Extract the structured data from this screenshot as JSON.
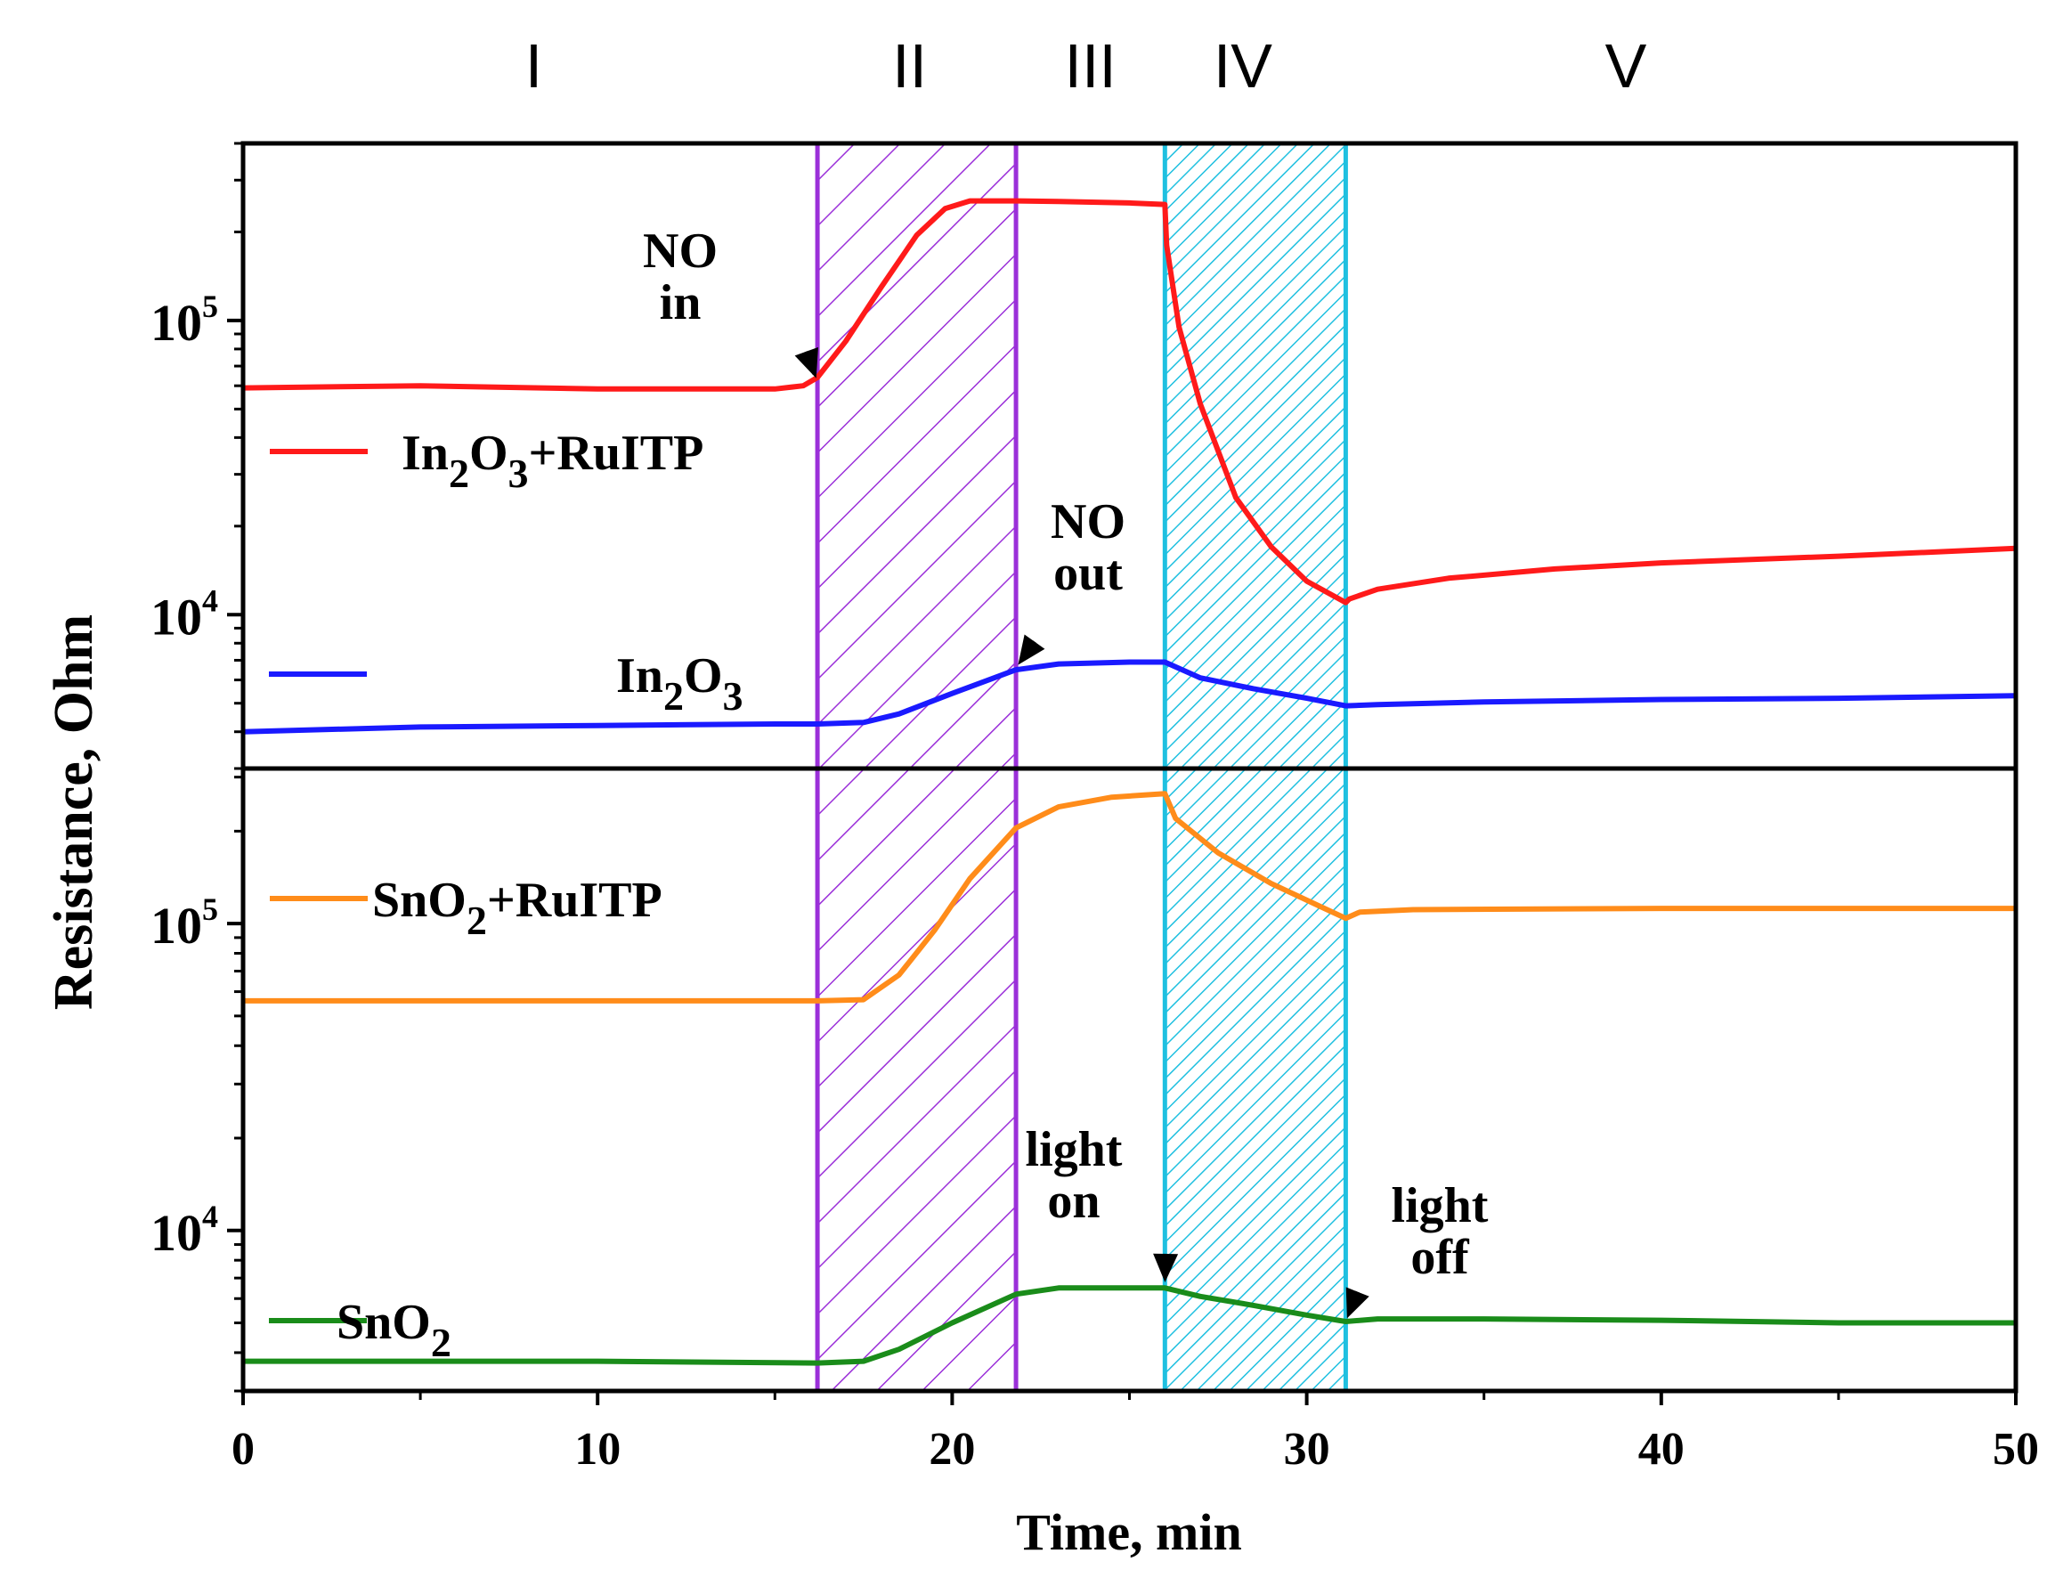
{
  "chart_data": {
    "type": "line",
    "title": "",
    "xlabel": "Time, min",
    "ylabel": "Resistance, Ohm",
    "xlim": [
      0,
      50
    ],
    "x_ticks": [
      0,
      10,
      20,
      30,
      40,
      50
    ],
    "x_tick_labels": [
      "0",
      "10",
      "20",
      "30",
      "40",
      "50"
    ],
    "yscale": "log",
    "stages": [
      {
        "label": "I",
        "x_center": 8.2
      },
      {
        "label": "II",
        "x_center": 18.8
      },
      {
        "label": "III",
        "x_center": 23.9
      },
      {
        "label": "IV",
        "x_center": 28.2
      },
      {
        "label": "V",
        "x_center": 39.0
      }
    ],
    "shaded_regions": [
      {
        "name": "NO exposure",
        "x": [
          16.2,
          21.8
        ],
        "color": "#9B30D9",
        "hatch": "wide"
      },
      {
        "name": "illumination",
        "x": [
          26.0,
          31.1
        ],
        "color": "#1FC0E0",
        "hatch": "dense"
      }
    ],
    "panels": [
      {
        "name": "top",
        "ylim": [
          3000,
          400000
        ],
        "y_ticks": [
          {
            "value": 10000,
            "base": "10",
            "exp": "4"
          },
          {
            "value": 100000,
            "base": "10",
            "exp": "5"
          }
        ],
        "series": [
          {
            "name": "In2O3+RuITP",
            "label_main": "In",
            "label_sub1": "2",
            "label_mid": "O",
            "label_sub2": "3",
            "label_tail": "+RuITP",
            "color": "#ff1a1a",
            "x": [
              0,
              5,
              10,
              15,
              15.8,
              16.2,
              17,
              18,
              19,
              19.8,
              20.5,
              21.8,
              23,
              25,
              26.0,
              26.05,
              26.4,
              27,
              28,
              29,
              30,
              31.1,
              31.2,
              32,
              34,
              37,
              40,
              45,
              50
            ],
            "y": [
              59000,
              60000,
              58500,
              58500,
              60000,
              64000,
              85000,
              130000,
              195000,
              240000,
              255000,
              255000,
              254000,
              251000,
              248000,
              180000,
              95000,
              52000,
              25000,
              17000,
              13000,
              11000,
              11300,
              12200,
              13300,
              14300,
              15000,
              15800,
              16800
            ]
          },
          {
            "name": "In2O3",
            "label_main": "In",
            "label_sub1": "2",
            "label_mid": "O",
            "label_sub2": "3",
            "label_tail": "",
            "color": "#1a1aff",
            "x": [
              0,
              5,
              10,
              15,
              16.2,
              17.5,
              18.5,
              20,
              21.8,
              23,
              25,
              26.0,
              27,
              28.5,
              30,
              31.1,
              32,
              35,
              40,
              45,
              50
            ],
            "y": [
              4000,
              4150,
              4200,
              4250,
              4250,
              4300,
              4600,
              5400,
              6500,
              6800,
              6900,
              6900,
              6100,
              5600,
              5200,
              4900,
              4950,
              5050,
              5150,
              5200,
              5300
            ]
          }
        ]
      },
      {
        "name": "bottom",
        "ylim": [
          3000,
          320000
        ],
        "y_ticks": [
          {
            "value": 10000,
            "base": "10",
            "exp": "4"
          },
          {
            "value": 100000,
            "base": "10",
            "exp": "5"
          }
        ],
        "series": [
          {
            "name": "SnO2+RuITP",
            "label_main": "SnO",
            "label_sub1": "2",
            "label_mid": "",
            "label_sub2": "",
            "label_tail": "+RuITP",
            "color": "#ff8c1a",
            "x": [
              0,
              10,
              16.2,
              17.5,
              18.5,
              19.5,
              20.5,
              21.8,
              23,
              24.5,
              26.0,
              26.3,
              27.5,
              29,
              30.5,
              31.1,
              31.5,
              33,
              40,
              50
            ],
            "y": [
              56000,
              56000,
              56000,
              56500,
              68000,
              95000,
              140000,
              205000,
              240000,
              258000,
              265000,
              220000,
              170000,
              135000,
              112000,
              104000,
              109000,
              111000,
              112000,
              112000
            ]
          },
          {
            "name": "SnO2",
            "label_main": "SnO",
            "label_sub1": "2",
            "label_mid": "",
            "label_sub2": "",
            "label_tail": "",
            "color": "#1a8c1a",
            "x": [
              0,
              10,
              16.2,
              17.5,
              18.5,
              20,
              21.8,
              23,
              26.0,
              27,
              28.5,
              30,
              31.1,
              32,
              35,
              40,
              45,
              50
            ],
            "y": [
              3750,
              3750,
              3700,
              3750,
              4100,
              5000,
              6200,
              6500,
              6500,
              6100,
              5700,
              5300,
              5050,
              5150,
              5150,
              5100,
              5000,
              5000
            ]
          }
        ]
      }
    ],
    "annotations": [
      {
        "lines": [
          "NO",
          "in"
        ],
        "x": 16.2,
        "panel": "top",
        "at": 62000
      },
      {
        "lines": [
          "NO",
          "out"
        ],
        "x": 21.8,
        "panel": "top",
        "at": 6600
      },
      {
        "lines": [
          "light",
          "on"
        ],
        "x": 26.0,
        "panel": "bottom",
        "at": 6600
      },
      {
        "lines": [
          "light",
          "off"
        ],
        "x": 31.1,
        "panel": "bottom",
        "at": 5050
      }
    ]
  }
}
